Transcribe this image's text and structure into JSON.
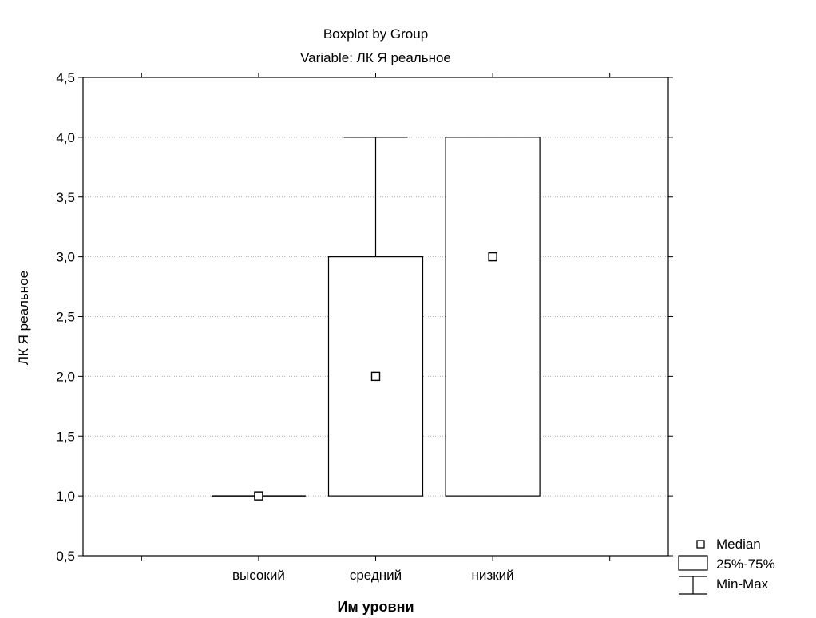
{
  "chart_data": {
    "type": "boxplot",
    "title": "Boxplot by Group",
    "subtitle": "Variable:  ЛК Я реальное",
    "xlabel": "Им уровни",
    "ylabel": "ЛК Я реальное",
    "ylim": [
      0.5,
      4.5
    ],
    "yticks": [
      "0,5",
      "1,0",
      "1,5",
      "2,0",
      "2,5",
      "3,0",
      "3,5",
      "4,0",
      "4,5"
    ],
    "ytick_values": [
      0.5,
      1.0,
      1.5,
      2.0,
      2.5,
      3.0,
      3.5,
      4.0,
      4.5
    ],
    "grid": "horizontal dotted",
    "categories": [
      "высокий",
      "средний",
      "низкий"
    ],
    "groups": [
      {
        "name": "высокий",
        "median": 1.0,
        "q1": 1.0,
        "q3": 1.0,
        "min": 1.0,
        "max": 1.0
      },
      {
        "name": "средний",
        "median": 2.0,
        "q1": 1.0,
        "q3": 3.0,
        "min": 1.0,
        "max": 4.0
      },
      {
        "name": "низкий",
        "median": 3.0,
        "q1": 1.0,
        "q3": 4.0,
        "min": 1.0,
        "max": 4.0
      }
    ],
    "legend": {
      "placement": "bottom-right",
      "entries": [
        "Median",
        "25%-75%",
        "Min-Max"
      ]
    }
  }
}
